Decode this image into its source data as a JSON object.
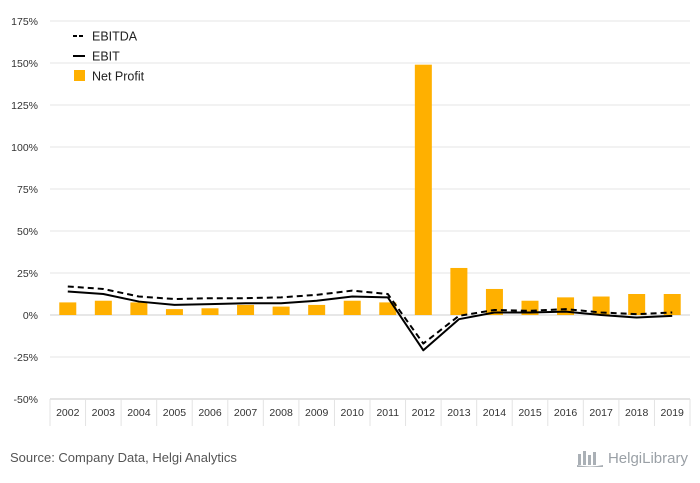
{
  "chart_data": {
    "type": "bar",
    "categories": [
      "2002",
      "2003",
      "2004",
      "2005",
      "2006",
      "2007",
      "2008",
      "2009",
      "2010",
      "2011",
      "2012",
      "2013",
      "2014",
      "2015",
      "2016",
      "2017",
      "2018",
      "2019"
    ],
    "series": [
      {
        "name": "EBITDA",
        "kind": "line",
        "style": "dashed",
        "color": "#000000",
        "values": [
          17,
          15.5,
          11,
          9.5,
          10,
          10,
          10.5,
          12,
          14.5,
          12.5,
          -17,
          -0.5,
          3,
          2.5,
          3.5,
          1.5,
          0.5,
          1.5
        ]
      },
      {
        "name": "EBIT",
        "kind": "line",
        "style": "solid",
        "color": "#000000",
        "values": [
          14,
          12.5,
          8,
          6,
          6.5,
          7,
          7,
          8.5,
          11,
          10.5,
          -21,
          -2.5,
          1.5,
          1.5,
          2,
          0,
          -1.5,
          -0.5
        ]
      },
      {
        "name": "Net Profit",
        "kind": "bar",
        "color": "#FFB000",
        "values": [
          7.5,
          8.5,
          7.5,
          3.5,
          4,
          6,
          5,
          6,
          8.5,
          7.5,
          149,
          28,
          15.5,
          8.5,
          10.5,
          11,
          12.5,
          12.5
        ]
      }
    ],
    "ylim": [
      -50,
      175
    ],
    "yticks": [
      "-50%",
      "-25%",
      "0%",
      "25%",
      "50%",
      "75%",
      "100%",
      "125%",
      "150%",
      "175%"
    ],
    "ytick_values": [
      -50,
      -25,
      0,
      25,
      50,
      75,
      100,
      125,
      150,
      175
    ],
    "grid": true,
    "legend_position": "top-left"
  },
  "footer": {
    "source": "Source: Company Data, Helgi Analytics",
    "brand": "HelgiLibrary"
  }
}
